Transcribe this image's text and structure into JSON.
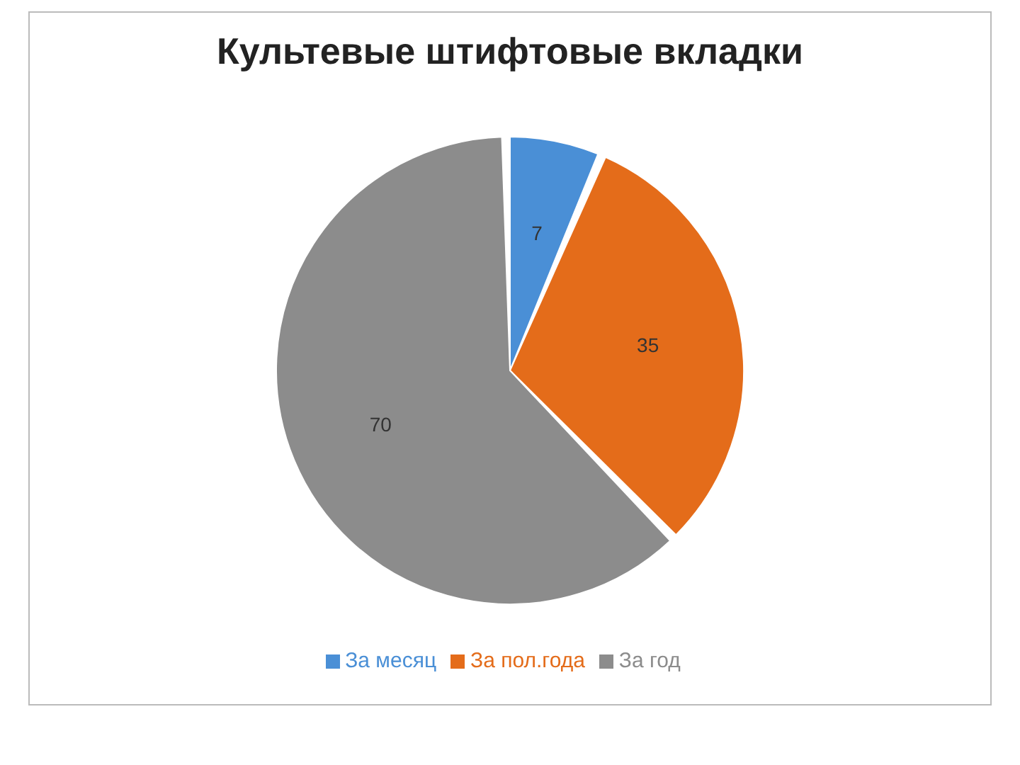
{
  "chart_data": {
    "type": "pie",
    "title": "Культевые штифтовые вкладки",
    "categories": [
      "За месяц",
      "За пол.года",
      "За год"
    ],
    "values": [
      7,
      35,
      70
    ],
    "colors": [
      "#4a8fd6",
      "#e46c1a",
      "#8c8c8c"
    ],
    "data_labels": true,
    "legend": "bottom"
  }
}
